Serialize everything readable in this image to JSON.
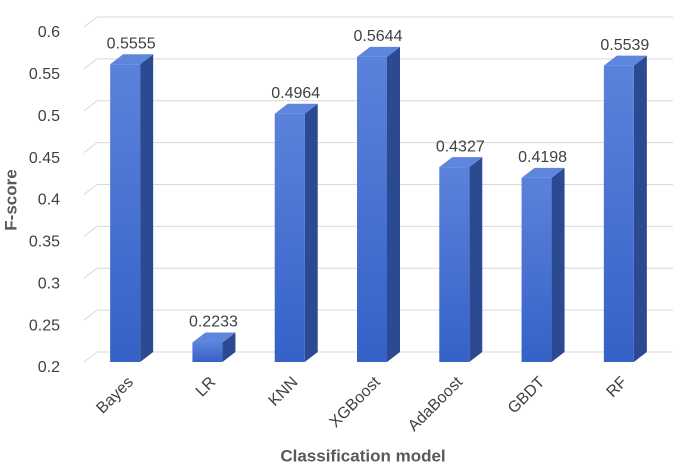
{
  "chart_data": {
    "type": "bar3d",
    "categories": [
      "Bayes",
      "LR",
      "KNN",
      "XGBoost",
      "AdaBoost",
      "GBDT",
      "RF"
    ],
    "values": [
      0.5555,
      0.2233,
      0.4964,
      0.5644,
      0.4327,
      0.4198,
      0.5539
    ],
    "color": "#4169c9",
    "ylim": [
      0.2,
      0.6
    ],
    "yticks": [
      0.2,
      0.25,
      0.3,
      0.35,
      0.4,
      0.45,
      0.5,
      0.55,
      0.6
    ],
    "grid": true,
    "x_label": "Classification model",
    "y_label": "F-score"
  }
}
